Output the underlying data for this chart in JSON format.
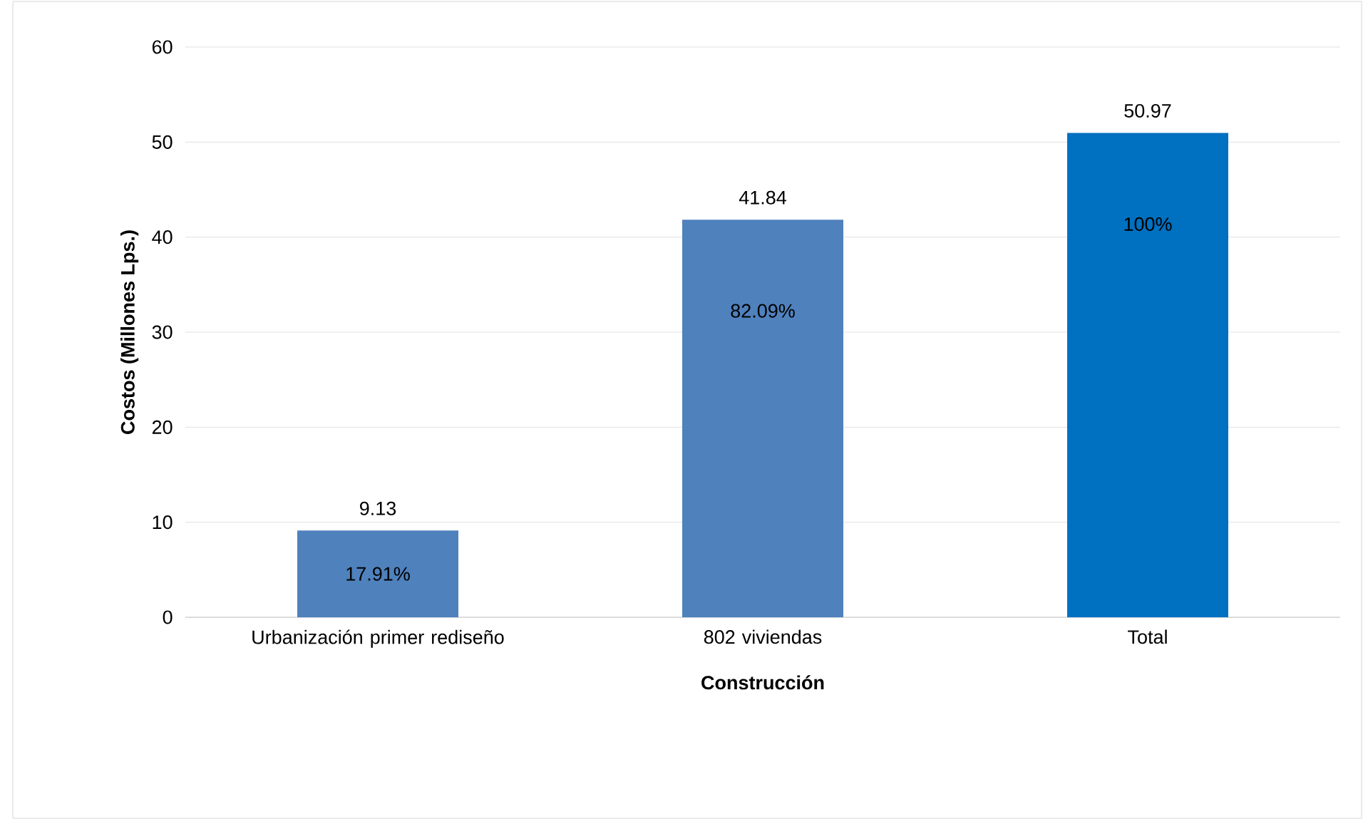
{
  "chart_data": {
    "type": "bar",
    "categories": [
      "Urbanización primer rediseño",
      "802 viviendas",
      "Total"
    ],
    "values": [
      9.13,
      41.84,
      50.97
    ],
    "colors": [
      "#4f81bd",
      "#4f81bd",
      "#0070c0"
    ],
    "xlabel": "Construcción",
    "ylabel": "Costos  (Millones Lps.)",
    "ylim": [
      0,
      60
    ],
    "yticks": [
      0,
      10,
      20,
      30,
      40,
      50,
      60
    ],
    "grid": "y",
    "data_labels": true,
    "annotations": [
      "17.91%",
      "82.09%",
      "100%"
    ]
  }
}
